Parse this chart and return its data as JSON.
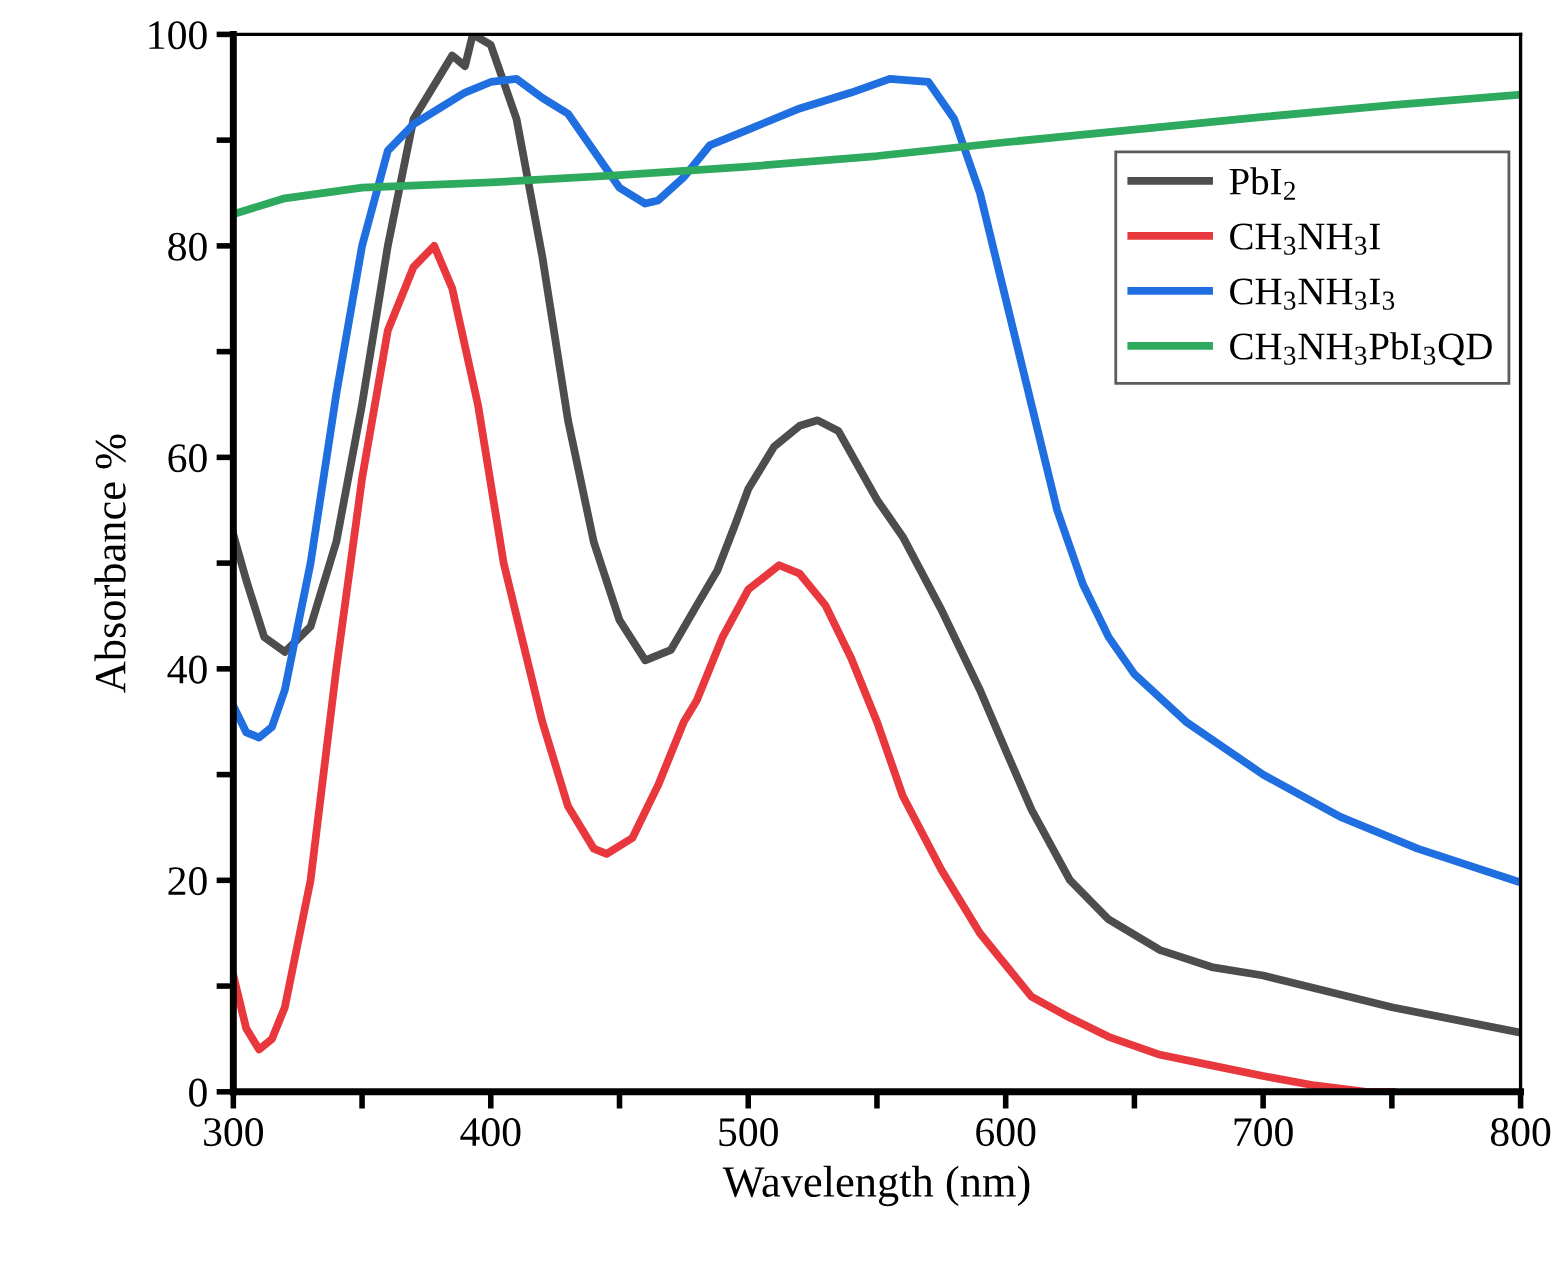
{
  "chart_data": {
    "type": "line",
    "xlabel": "Wavelength (nm)",
    "ylabel": "Absorbance %",
    "xlim": [
      300,
      800
    ],
    "ylim": [
      0,
      100
    ],
    "xticks": [
      300,
      {
        "value": 350,
        "label": null
      },
      400,
      {
        "value": 450,
        "label": null
      },
      500,
      {
        "value": 550,
        "label": null
      },
      600,
      {
        "value": 650,
        "label": null
      },
      700,
      {
        "value": 750,
        "label": null
      },
      800
    ],
    "yticks": [
      0,
      {
        "value": 10,
        "label": null
      },
      20,
      {
        "value": 30,
        "label": null
      },
      40,
      {
        "value": 50,
        "label": null
      },
      60,
      {
        "value": 70,
        "label": null
      },
      80,
      {
        "value": 90,
        "label": null
      },
      100
    ],
    "grid": false,
    "legend": "top right",
    "marker": "none",
    "line_style": "solid",
    "series": [
      {
        "name": "PbI$_{2}$",
        "color": "#4d4d4d",
        "x": [
          300,
          305,
          312,
          320,
          330,
          340,
          350,
          360,
          370,
          380,
          385,
          390,
          393,
          400,
          410,
          420,
          430,
          440,
          450,
          460,
          470,
          480,
          488,
          495,
          500,
          510,
          520,
          527,
          535,
          550,
          560,
          575,
          590,
          600,
          610,
          625,
          640,
          660,
          680,
          700,
          750,
          800
        ],
        "values": [
          52.7,
          48.4,
          43,
          41.6,
          44,
          52,
          65,
          80,
          92,
          96,
          98,
          97,
          100,
          99,
          92,
          79,
          63.5,
          52,
          44.6,
          40.8,
          41.8,
          46,
          49.3,
          53.7,
          57,
          61,
          63,
          63.5,
          62.5,
          56,
          52.5,
          45.6,
          38,
          32.3,
          26.7,
          20,
          16.3,
          13.4,
          11.8,
          11,
          8,
          5.6
        ]
      },
      {
        "name": "CH$_{3}$NH$_{3}$I",
        "color": "#e8383d",
        "x": [
          300,
          305,
          310,
          315,
          320,
          330,
          340,
          350,
          360,
          370,
          378,
          385,
          395,
          405,
          420,
          430,
          440,
          445,
          455,
          465,
          475,
          480,
          490,
          500,
          512,
          520,
          530,
          540,
          550,
          560,
          575,
          590,
          600,
          610,
          625,
          640,
          660,
          680,
          700,
          720,
          740,
          750
        ],
        "values": [
          11,
          6,
          4,
          5,
          8,
          20,
          40,
          58,
          72,
          78,
          80,
          76,
          65,
          50,
          35,
          27,
          23,
          22.5,
          24,
          29,
          35,
          37,
          43,
          47.5,
          49.8,
          49,
          46,
          41,
          35,
          28,
          21,
          15,
          12,
          9,
          7,
          5.2,
          3.5,
          2.5,
          1.5,
          0.6,
          0,
          0
        ]
      },
      {
        "name": "CH$_{3}$NH$_{3}$I$_{3}$",
        "color": "#1f6fe0",
        "x": [
          300,
          305,
          310,
          315,
          320,
          330,
          340,
          350,
          360,
          370,
          380,
          390,
          400,
          410,
          420,
          430,
          440,
          450,
          460,
          465,
          475,
          485,
          500,
          520,
          540,
          555,
          570,
          580,
          590,
          600,
          610,
          620,
          630,
          640,
          650,
          670,
          700,
          730,
          760,
          800
        ],
        "values": [
          36.5,
          34,
          33.5,
          34.5,
          38,
          50,
          66,
          80,
          89,
          91.5,
          93,
          94.5,
          95.5,
          95.8,
          94,
          92.5,
          89,
          85.5,
          84,
          84.3,
          86.5,
          89.5,
          91,
          93,
          94.5,
          95.8,
          95.5,
          92,
          85,
          75,
          65,
          55,
          48,
          43,
          39.5,
          35,
          30,
          26,
          23,
          19.8
        ]
      },
      {
        "name": "CH$_{3}$NH$_{3}$PbI$_{3}$QD",
        "color": "#2eaa5e",
        "x": [
          300,
          320,
          350,
          400,
          450,
          500,
          550,
          600,
          650,
          700,
          750,
          800
        ],
        "values": [
          83,
          84.5,
          85.5,
          86,
          86.7,
          87.5,
          88.5,
          89.8,
          91,
          92.2,
          93.3,
          94.3
        ]
      }
    ]
  }
}
